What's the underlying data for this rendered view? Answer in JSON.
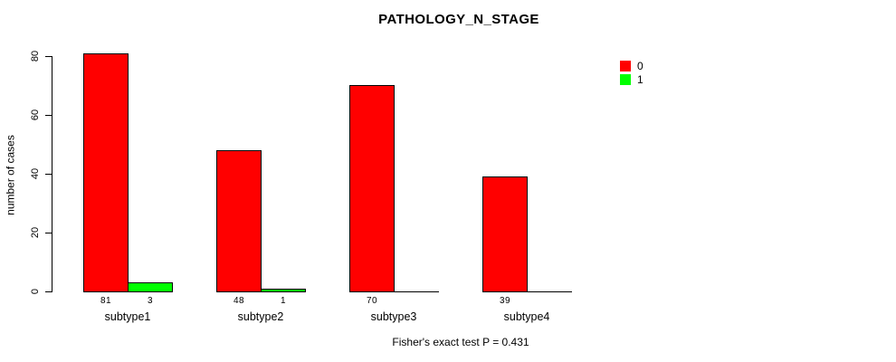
{
  "chart_data": {
    "type": "bar",
    "title": "PATHOLOGY_N_STAGE",
    "ylabel": "number of cases",
    "xlabel": "",
    "categories": [
      "subtype1",
      "subtype2",
      "subtype3",
      "subtype4"
    ],
    "series": [
      {
        "name": "0",
        "color": "#FF0000",
        "values": [
          81,
          48,
          70,
          39
        ]
      },
      {
        "name": "1",
        "color": "#00FF00",
        "values": [
          3,
          1,
          0,
          0
        ]
      }
    ],
    "yticks": [
      0,
      20,
      40,
      60,
      80
    ],
    "ylim": [
      0,
      81
    ],
    "grid": false,
    "legend_position": "right",
    "footer": "Fisher's exact test P = 0.431"
  }
}
